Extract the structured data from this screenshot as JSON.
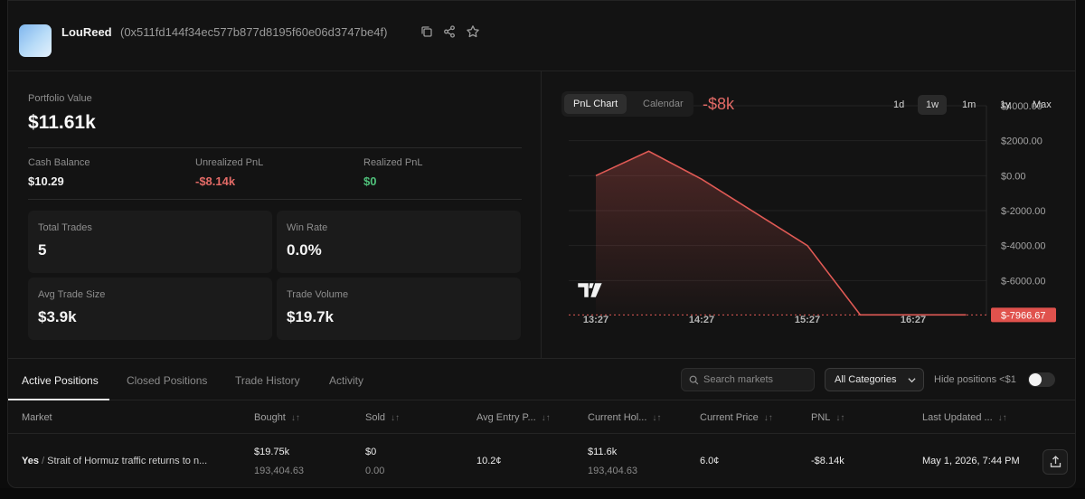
{
  "header": {
    "username": "LouReed",
    "address": "(0x511fd144f34ec577b877d8195f60e06d3747be4f)",
    "icons": [
      "copy-icon",
      "share-icon",
      "star-icon"
    ]
  },
  "stats": {
    "portfolio_label": "Portfolio Value",
    "portfolio_value": "$11.61k",
    "cash_label": "Cash Balance",
    "cash_value": "$10.29",
    "unrealized_label": "Unrealized PnL",
    "unrealized_value": "-$8.14k",
    "realized_label": "Realized PnL",
    "realized_value": "$0",
    "cards": [
      {
        "label": "Total Trades",
        "value": "5"
      },
      {
        "label": "Win Rate",
        "value": "0.0%"
      },
      {
        "label": "Avg Trade Size",
        "value": "$3.9k"
      },
      {
        "label": "Trade Volume",
        "value": "$19.7k"
      }
    ],
    "colors": {
      "negative": "#e26a66",
      "positive": "#4fc07a"
    }
  },
  "chart_panel": {
    "tabs": [
      "PnL Chart",
      "Calendar"
    ],
    "active_tab": "PnL Chart",
    "headline": "-$8k",
    "timeframes": [
      "1d",
      "1w",
      "1m",
      "1y",
      "Max"
    ],
    "active_timeframe": "1w",
    "logo_text": "TV"
  },
  "chart_data": {
    "type": "area",
    "x": [
      "13:27",
      "13:57",
      "14:27",
      "15:27",
      "15:57",
      "16:27",
      "16:57"
    ],
    "values": [
      0,
      1400,
      -200,
      -4000,
      -7966.67,
      -7966.67,
      -7966.67
    ],
    "x_ticks": [
      "13:27",
      "14:27",
      "15:27",
      "16:27"
    ],
    "y_ticks": [
      "$4000.00",
      "$2000.00",
      "$0.00",
      "$-2000.00",
      "$-4000.00",
      "$-6000.00"
    ],
    "y_tick_values": [
      4000,
      2000,
      0,
      -2000,
      -4000,
      -6000
    ],
    "ylim": [
      -8000,
      4000
    ],
    "last_value_label": "$-7966.67",
    "grid": true,
    "line_color": "#e05a55"
  },
  "tabs": {
    "items": [
      "Active Positions",
      "Closed Positions",
      "Trade History",
      "Activity"
    ],
    "active": "Active Positions",
    "search_placeholder": "Search markets",
    "category": "All Categories",
    "hide_label": "Hide positions <$1"
  },
  "table": {
    "columns": [
      "Market",
      "Bought",
      "Sold",
      "Avg Entry P...",
      "Current Hol...",
      "Current Price",
      "PNL",
      "Last Updated ..."
    ],
    "rows": [
      {
        "outcome": "Yes",
        "separator": "/",
        "market": "Strait of Hormuz traffic returns to n...",
        "bought": "$19.75k",
        "bought_shares": "193,404.63",
        "sold": "$0",
        "sold_shares": "0.00",
        "avg_entry": "10.2¢",
        "holding": "$11.6k",
        "holding_shares": "193,404.63",
        "current_price": "6.0¢",
        "pnl": "-$8.14k",
        "last_updated": "May 1, 2026, 7:44 PM"
      }
    ]
  }
}
